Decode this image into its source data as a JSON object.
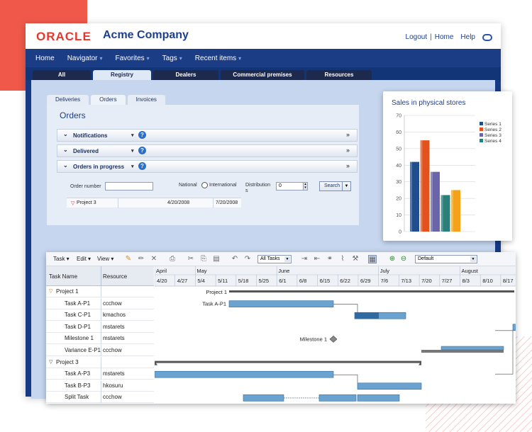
{
  "header": {
    "logo": "ORACLE",
    "company": "Acme Company",
    "links": [
      "Logout",
      "Home",
      "Help"
    ]
  },
  "nav": {
    "items": [
      {
        "label": "Home",
        "dropdown": false
      },
      {
        "label": "Navigator",
        "dropdown": true
      },
      {
        "label": "Favorites",
        "dropdown": true
      },
      {
        "label": "Tags",
        "dropdown": true
      },
      {
        "label": "Recent items",
        "dropdown": true
      }
    ]
  },
  "main_tabs": [
    "All",
    "Registry",
    "Dealers",
    "Commercial premises",
    "Resources"
  ],
  "main_tabs_active": "Registry",
  "sub_tabs": [
    "Deliveries",
    "Orders",
    "Invoices"
  ],
  "sub_tabs_active": "Orders",
  "orders": {
    "title": "Orders",
    "sections": [
      "Notifications",
      "Delivered",
      "Orders in progress"
    ],
    "form": {
      "order_number_label": "Order number",
      "order_number_value": "",
      "national_label": "National",
      "international_label": "International",
      "distributions_label": "Distribution",
      "distributions_label_wrap": "s",
      "distributions_value": "0",
      "search_label": "Search"
    },
    "results": [
      {
        "name": "Project 3",
        "start": "4/20/2008",
        "end": "7/20/2008"
      }
    ]
  },
  "sales": {
    "title": "Sales in physical stores",
    "colors": [
      "#1f4e8f",
      "#e2521d",
      "#6a64a8",
      "#2a7f7a",
      "#f5a21a"
    ]
  },
  "chart_data": {
    "type": "bar",
    "title": "Sales in physical stores",
    "categories": [
      ""
    ],
    "series": [
      {
        "name": "Series 1",
        "values": [
          42
        ]
      },
      {
        "name": "Series 2",
        "values": [
          55
        ]
      },
      {
        "name": "Series 3",
        "values": [
          36
        ]
      },
      {
        "name": "Series 4",
        "values": [
          22
        ]
      },
      {
        "name": "",
        "values": [
          25
        ]
      }
    ],
    "ylim": [
      0,
      70
    ],
    "yticks": [
      0,
      10,
      20,
      30,
      40,
      50,
      60,
      70
    ],
    "grid": true,
    "legend": "right"
  },
  "gantt": {
    "toolbar": {
      "menus": [
        "Task",
        "Edit",
        "View"
      ],
      "filter": "All Tasks",
      "view_select": "Default"
    },
    "columns": {
      "task": "Task Name",
      "resource": "Resource"
    },
    "months": [
      "April",
      "May",
      "June",
      "July",
      "August"
    ],
    "weeks": [
      "4/20",
      "4/27",
      "5/4",
      "5/11",
      "5/18",
      "5/25",
      "6/1",
      "6/8",
      "6/15",
      "6/22",
      "6/29",
      "7/6",
      "7/13",
      "7/20",
      "7/27",
      "8/3",
      "8/10",
      "8/17"
    ],
    "rows": [
      {
        "name": "Project 1",
        "resource": "",
        "level": 0,
        "group": true,
        "collapsed": false
      },
      {
        "name": "Task A-P1",
        "resource": "ccchow",
        "level": 1
      },
      {
        "name": "Task C-P1",
        "resource": "kmachos",
        "level": 1
      },
      {
        "name": "Task D-P1",
        "resource": "mstarets",
        "level": 1
      },
      {
        "name": "Milestone 1",
        "resource": "mstarets",
        "level": 1
      },
      {
        "name": "Variance E-P1",
        "resource": "ccchow",
        "level": 1
      },
      {
        "name": "Project 3",
        "resource": "",
        "level": 0,
        "group": true,
        "collapsed": false
      },
      {
        "name": "Task A-P3",
        "resource": "mstarets",
        "level": 1
      },
      {
        "name": "Task B-P3",
        "resource": "hkosuru",
        "level": 1
      },
      {
        "name": "Split Task",
        "resource": "ccchow",
        "level": 1
      }
    ],
    "bar_labels": {
      "project1": "Project 1",
      "taskA": "Task A-P1",
      "milestone": "Milestone 1"
    }
  }
}
